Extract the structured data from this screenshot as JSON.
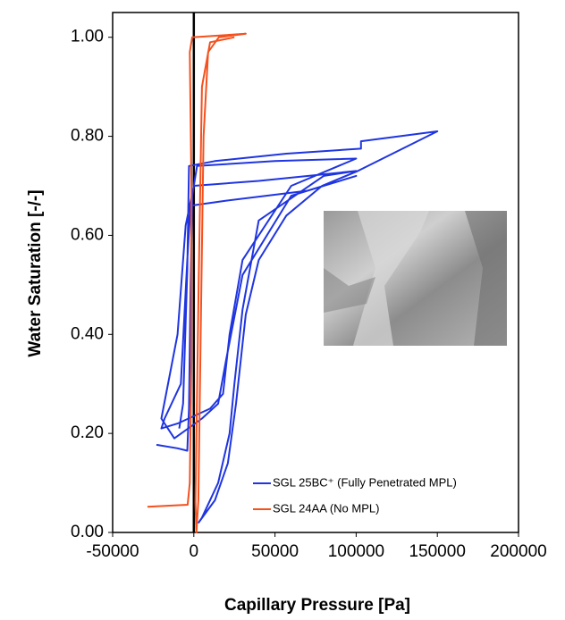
{
  "chart_data": {
    "type": "line",
    "xlabel": "Capillary Pressure [Pa]",
    "ylabel": "Water Saturation [-/-]",
    "xlim": [
      -50000,
      200000
    ],
    "ylim": [
      0,
      1.05
    ],
    "xticks": [
      -50000,
      0,
      50000,
      100000,
      150000,
      200000
    ],
    "yticks": [
      {
        "value": 0,
        "label": "0.00"
      },
      {
        "value": 0.2,
        "label": "0.20"
      },
      {
        "value": 0.4,
        "label": "0.40"
      },
      {
        "value": 0.6,
        "label": "0.60"
      },
      {
        "value": 0.8,
        "label": "0.80"
      },
      {
        "value": 1,
        "label": "1.00"
      }
    ],
    "zero_line": true,
    "legend_position": "lower right",
    "series": [
      {
        "name": "SGL 25BC⁺ (Fully Penetrated MPL)",
        "color": "#1f35e0",
        "x": [
          -23000,
          -10000,
          -4000,
          -3000,
          -2000,
          -1000,
          2000,
          50000,
          100000,
          60000,
          30000,
          22000,
          18000,
          10000,
          -10000,
          -20000,
          -18000,
          -8000,
          -4000,
          -2000,
          20000,
          70000,
          100000,
          60000,
          30000,
          20000,
          15000,
          5000,
          -12000,
          -20000,
          -10000,
          -5000,
          0,
          40000,
          100000,
          80000,
          40000,
          30000,
          25000,
          22000,
          15000,
          5000,
          3000,
          13000,
          21000,
          26000,
          32000,
          40000,
          57000,
          79000,
          101000,
          150000,
          103000,
          103000,
          57000,
          13000,
          -3000,
          -4000,
          -6600,
          -9000
        ],
        "values": [
          0.177,
          0.17,
          0.165,
          0.25,
          0.5,
          0.68,
          0.74,
          0.75,
          0.755,
          0.7,
          0.55,
          0.4,
          0.28,
          0.25,
          0.22,
          0.21,
          0.23,
          0.3,
          0.55,
          0.66,
          0.67,
          0.69,
          0.72,
          0.68,
          0.52,
          0.35,
          0.26,
          0.23,
          0.19,
          0.23,
          0.4,
          0.62,
          0.7,
          0.71,
          0.73,
          0.72,
          0.63,
          0.45,
          0.3,
          0.2,
          0.1,
          0.03,
          0.02,
          0.065,
          0.14,
          0.26,
          0.44,
          0.55,
          0.64,
          0.7,
          0.73,
          0.81,
          0.79,
          0.775,
          0.765,
          0.75,
          0.74,
          0.53,
          0.26,
          0.21
        ]
      },
      {
        "name": "SGL 24AA (No MPL)",
        "color": "#f4511e",
        "x": [
          -28600,
          -3800,
          -2500,
          -1500,
          -1500,
          -2500,
          -1000,
          32000,
          15400,
          8800,
          6000,
          4400,
          2800,
          1600,
          1000,
          3000,
          5000,
          10000,
          25000
        ],
        "values": [
          0.052,
          0.056,
          0.1,
          0.35,
          0.71,
          0.97,
          1.0,
          1.007,
          1.0,
          0.97,
          0.8,
          0.44,
          0.065,
          0,
          0.06,
          0.5,
          0.9,
          0.99,
          1.0
        ]
      }
    ]
  }
}
